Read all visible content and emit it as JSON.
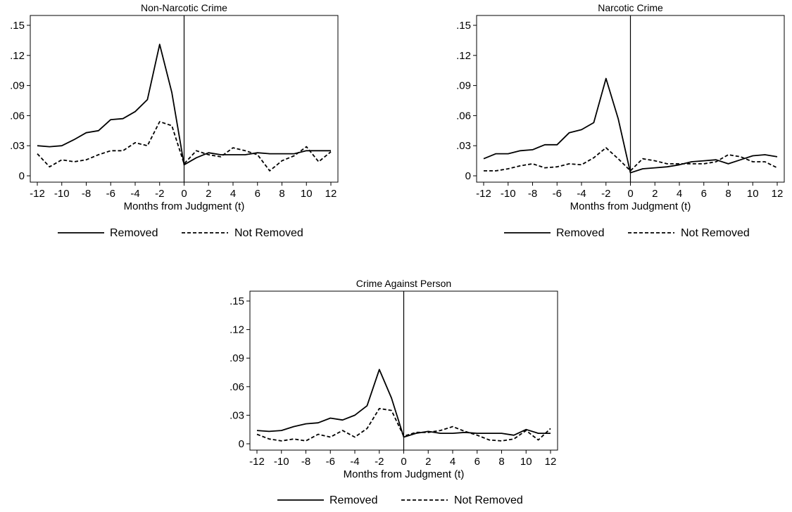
{
  "legend": {
    "removed_label": "Removed",
    "not_removed_label": "Not Removed"
  },
  "chart_data": [
    {
      "type": "line",
      "title": "Non-Narcotic Crime",
      "xlabel": "Months from Judgment (t)",
      "ylabel": "",
      "xlim": [
        -12,
        12
      ],
      "ylim": [
        0,
        0.15
      ],
      "xticks": [
        -12,
        -10,
        -8,
        -6,
        -4,
        -2,
        0,
        2,
        4,
        6,
        8,
        10,
        12
      ],
      "yticks": [
        0,
        0.03,
        0.06,
        0.09,
        0.12,
        0.15
      ],
      "ytick_labels": [
        "0",
        ".03",
        ".06",
        ".09",
        ".12",
        ".15"
      ],
      "vline_x": 0,
      "legend_position": "bottom",
      "grid": false,
      "x": [
        -12,
        -11,
        -10,
        -9,
        -8,
        -7,
        -6,
        -5,
        -4,
        -3,
        -2,
        -1,
        0,
        1,
        2,
        3,
        4,
        5,
        6,
        7,
        8,
        9,
        10,
        11,
        12
      ],
      "series": [
        {
          "name": "Removed",
          "style": "solid",
          "values": [
            0.03,
            0.029,
            0.03,
            0.036,
            0.043,
            0.045,
            0.056,
            0.057,
            0.064,
            0.076,
            0.131,
            0.083,
            0.011,
            0.018,
            0.023,
            0.021,
            0.021,
            0.021,
            0.023,
            0.022,
            0.022,
            0.022,
            0.025,
            0.025,
            0.025
          ]
        },
        {
          "name": "Not Removed",
          "style": "dashed",
          "values": [
            0.022,
            0.009,
            0.016,
            0.014,
            0.016,
            0.021,
            0.025,
            0.025,
            0.033,
            0.03,
            0.054,
            0.05,
            0.012,
            0.025,
            0.021,
            0.019,
            0.028,
            0.025,
            0.021,
            0.005,
            0.015,
            0.02,
            0.029,
            0.014,
            0.024
          ]
        }
      ]
    },
    {
      "type": "line",
      "title": "Narcotic Crime",
      "xlabel": "Months from Judgment (t)",
      "ylabel": "",
      "xlim": [
        -12,
        12
      ],
      "ylim": [
        0,
        0.15
      ],
      "xticks": [
        -12,
        -10,
        -8,
        -6,
        -4,
        -2,
        0,
        2,
        4,
        6,
        8,
        10,
        12
      ],
      "yticks": [
        0,
        0.03,
        0.06,
        0.09,
        0.12,
        0.15
      ],
      "ytick_labels": [
        "0",
        ".03",
        ".06",
        ".09",
        ".12",
        ".15"
      ],
      "vline_x": 0,
      "legend_position": "bottom",
      "grid": false,
      "x": [
        -12,
        -11,
        -10,
        -9,
        -8,
        -7,
        -6,
        -5,
        -4,
        -3,
        -2,
        -1,
        0,
        1,
        2,
        3,
        4,
        5,
        6,
        7,
        8,
        9,
        10,
        11,
        12
      ],
      "series": [
        {
          "name": "Removed",
          "style": "solid",
          "values": [
            0.017,
            0.022,
            0.022,
            0.025,
            0.026,
            0.031,
            0.031,
            0.043,
            0.046,
            0.053,
            0.097,
            0.057,
            0.003,
            0.007,
            0.008,
            0.009,
            0.011,
            0.014,
            0.015,
            0.016,
            0.012,
            0.016,
            0.02,
            0.021,
            0.019
          ]
        },
        {
          "name": "Not Removed",
          "style": "dashed",
          "values": [
            0.005,
            0.005,
            0.007,
            0.01,
            0.012,
            0.008,
            0.009,
            0.012,
            0.011,
            0.018,
            0.028,
            0.017,
            0.005,
            0.017,
            0.015,
            0.012,
            0.012,
            0.012,
            0.012,
            0.014,
            0.021,
            0.019,
            0.014,
            0.014,
            0.008
          ]
        }
      ]
    },
    {
      "type": "line",
      "title": "Crime Against Person",
      "xlabel": "Months from Judgment (t)",
      "ylabel": "",
      "xlim": [
        -12,
        12
      ],
      "ylim": [
        0,
        0.15
      ],
      "xticks": [
        -12,
        -10,
        -8,
        -6,
        -4,
        -2,
        0,
        2,
        4,
        6,
        8,
        10,
        12
      ],
      "yticks": [
        0,
        0.03,
        0.06,
        0.09,
        0.12,
        0.15
      ],
      "ytick_labels": [
        "0",
        ".03",
        ".06",
        ".09",
        ".12",
        ".15"
      ],
      "vline_x": 0,
      "legend_position": "bottom",
      "grid": false,
      "x": [
        -12,
        -11,
        -10,
        -9,
        -8,
        -7,
        -6,
        -5,
        -4,
        -3,
        -2,
        -1,
        0,
        1,
        2,
        3,
        4,
        5,
        6,
        7,
        8,
        9,
        10,
        11,
        12
      ],
      "series": [
        {
          "name": "Removed",
          "style": "solid",
          "values": [
            0.014,
            0.013,
            0.014,
            0.018,
            0.021,
            0.022,
            0.027,
            0.025,
            0.03,
            0.04,
            0.078,
            0.048,
            0.007,
            0.011,
            0.013,
            0.011,
            0.011,
            0.012,
            0.011,
            0.011,
            0.011,
            0.009,
            0.015,
            0.011,
            0.011
          ]
        },
        {
          "name": "Not Removed",
          "style": "dashed",
          "values": [
            0.01,
            0.005,
            0.003,
            0.005,
            0.003,
            0.01,
            0.007,
            0.014,
            0.007,
            0.016,
            0.037,
            0.035,
            0.008,
            0.012,
            0.012,
            0.014,
            0.018,
            0.013,
            0.009,
            0.004,
            0.003,
            0.005,
            0.014,
            0.004,
            0.016
          ]
        }
      ]
    }
  ]
}
